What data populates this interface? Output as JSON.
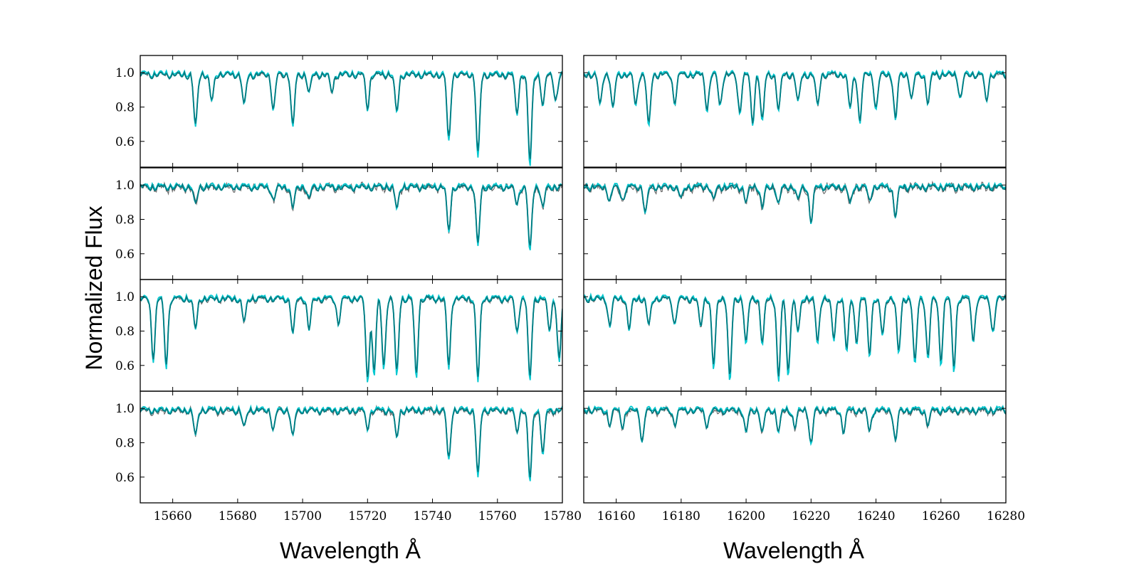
{
  "figure": {
    "ylabel": "Normalized Flux",
    "xlabel_left": "Wavelength Å",
    "xlabel_right": "Wavelength Å"
  },
  "colors": {
    "observed": "#6e6e6e",
    "model_a": "#00c8d0",
    "model_b": "#007a80"
  },
  "chart_data": [
    {
      "type": "line",
      "column": "left",
      "xlim": [
        15650,
        15780
      ],
      "ylim": [
        0.45,
        1.1
      ],
      "xticks": [
        15660,
        15680,
        15700,
        15720,
        15740,
        15760,
        15780
      ],
      "yticks": [
        0.6,
        0.8,
        1.0
      ],
      "ytick_labels": [
        "0.6",
        "0.8",
        "1.0"
      ],
      "rows": [
        {
          "row": 1,
          "lines": [
            [
              15667,
              0.7
            ],
            [
              15672,
              0.84
            ],
            [
              15682,
              0.82
            ],
            [
              15691,
              0.8
            ],
            [
              15697,
              0.7
            ],
            [
              15702,
              0.9
            ],
            [
              15709,
              0.9
            ],
            [
              15720,
              0.81
            ],
            [
              15729,
              0.78
            ],
            [
              15745,
              0.62
            ],
            [
              15754,
              0.53
            ],
            [
              15766,
              0.78
            ],
            [
              15770,
              0.48
            ],
            [
              15774,
              0.82
            ],
            [
              15778,
              0.85
            ]
          ],
          "extra_noise": 0.005
        },
        {
          "row": 2,
          "lines": [
            [
              15667,
              0.9
            ],
            [
              15691,
              0.92
            ],
            [
              15697,
              0.88
            ],
            [
              15702,
              0.93
            ],
            [
              15729,
              0.87
            ],
            [
              15745,
              0.75
            ],
            [
              15754,
              0.66
            ],
            [
              15766,
              0.9
            ],
            [
              15770,
              0.63
            ],
            [
              15774,
              0.88
            ]
          ],
          "extra_noise": 0.018
        },
        {
          "row": 3,
          "lines": [
            [
              15654,
              0.66
            ],
            [
              15658,
              0.62
            ],
            [
              15667,
              0.82
            ],
            [
              15682,
              0.86
            ],
            [
              15697,
              0.8
            ],
            [
              15702,
              0.82
            ],
            [
              15711,
              0.86
            ],
            [
              15720,
              0.53
            ],
            [
              15722,
              0.57
            ],
            [
              15725,
              0.6
            ],
            [
              15729,
              0.56
            ],
            [
              15735,
              0.56
            ],
            [
              15745,
              0.61
            ],
            [
              15754,
              0.53
            ],
            [
              15766,
              0.8
            ],
            [
              15770,
              0.53
            ],
            [
              15776,
              0.82
            ],
            [
              15779,
              0.64
            ]
          ],
          "extra_noise": 0.008
        },
        {
          "row": 4,
          "lines": [
            [
              15667,
              0.85
            ],
            [
              15682,
              0.9
            ],
            [
              15691,
              0.89
            ],
            [
              15697,
              0.85
            ],
            [
              15720,
              0.9
            ],
            [
              15729,
              0.84
            ],
            [
              15745,
              0.71
            ],
            [
              15754,
              0.62
            ],
            [
              15766,
              0.88
            ],
            [
              15770,
              0.59
            ],
            [
              15774,
              0.75
            ]
          ],
          "extra_noise": 0.014
        }
      ]
    },
    {
      "type": "line",
      "column": "right",
      "xlim": [
        16150,
        16280
      ],
      "ylim": [
        0.45,
        1.1
      ],
      "xticks": [
        16160,
        16180,
        16200,
        16220,
        16240,
        16260,
        16280
      ],
      "yticks": [
        0.6,
        0.8,
        1.0
      ],
      "ytick_labels": [
        "",
        "",
        ""
      ],
      "rows": [
        {
          "row": 1,
          "lines": [
            [
              16155,
              0.82
            ],
            [
              16159,
              0.8
            ],
            [
              16166,
              0.82
            ],
            [
              16170,
              0.7
            ],
            [
              16178,
              0.84
            ],
            [
              16188,
              0.8
            ],
            [
              16192,
              0.82
            ],
            [
              16198,
              0.78
            ],
            [
              16202,
              0.72
            ],
            [
              16205,
              0.73
            ],
            [
              16210,
              0.8
            ],
            [
              16216,
              0.84
            ],
            [
              16222,
              0.82
            ],
            [
              16232,
              0.8
            ],
            [
              16235,
              0.73
            ],
            [
              16240,
              0.8
            ],
            [
              16246,
              0.74
            ],
            [
              16251,
              0.86
            ],
            [
              16256,
              0.84
            ],
            [
              16266,
              0.86
            ],
            [
              16274,
              0.85
            ]
          ],
          "extra_noise": 0.006
        },
        {
          "row": 2,
          "lines": [
            [
              16158,
              0.92
            ],
            [
              16162,
              0.92
            ],
            [
              16169,
              0.85
            ],
            [
              16180,
              0.93
            ],
            [
              16190,
              0.92
            ],
            [
              16200,
              0.91
            ],
            [
              16205,
              0.88
            ],
            [
              16210,
              0.9
            ],
            [
              16216,
              0.92
            ],
            [
              16220,
              0.8
            ],
            [
              16232,
              0.9
            ],
            [
              16238,
              0.92
            ],
            [
              16246,
              0.83
            ]
          ],
          "extra_noise": 0.02
        },
        {
          "row": 3,
          "lines": [
            [
              16158,
              0.84
            ],
            [
              16164,
              0.82
            ],
            [
              16170,
              0.84
            ],
            [
              16178,
              0.85
            ],
            [
              16186,
              0.84
            ],
            [
              16190,
              0.6
            ],
            [
              16195,
              0.53
            ],
            [
              16200,
              0.74
            ],
            [
              16205,
              0.74
            ],
            [
              16210,
              0.54
            ],
            [
              16213,
              0.56
            ],
            [
              16216,
              0.8
            ],
            [
              16222,
              0.74
            ],
            [
              16227,
              0.76
            ],
            [
              16231,
              0.7
            ],
            [
              16234,
              0.75
            ],
            [
              16238,
              0.68
            ],
            [
              16242,
              0.78
            ],
            [
              16247,
              0.68
            ],
            [
              16252,
              0.62
            ],
            [
              16256,
              0.66
            ],
            [
              16260,
              0.64
            ],
            [
              16264,
              0.6
            ],
            [
              16270,
              0.76
            ],
            [
              16276,
              0.8
            ]
          ],
          "extra_noise": 0.008
        },
        {
          "row": 4,
          "lines": [
            [
              16158,
              0.92
            ],
            [
              16162,
              0.91
            ],
            [
              16168,
              0.82
            ],
            [
              16178,
              0.92
            ],
            [
              16188,
              0.91
            ],
            [
              16200,
              0.87
            ],
            [
              16205,
              0.87
            ],
            [
              16210,
              0.88
            ],
            [
              16215,
              0.9
            ],
            [
              16220,
              0.8
            ],
            [
              16230,
              0.88
            ],
            [
              16238,
              0.88
            ],
            [
              16246,
              0.82
            ],
            [
              16256,
              0.92
            ]
          ],
          "extra_noise": 0.014
        }
      ]
    }
  ]
}
